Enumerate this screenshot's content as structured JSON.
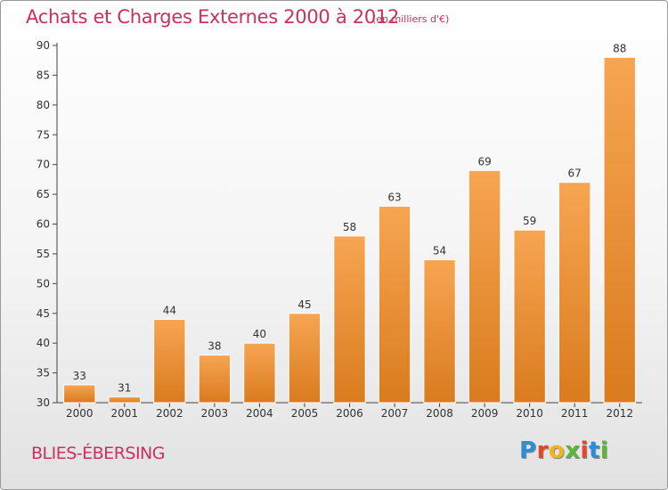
{
  "header": {
    "title": "Achats et Charges Externes 2000 à 2012",
    "subtitle": "(en milliers d'€)"
  },
  "footer": {
    "location": "BLIES-ÉBERSING",
    "logo_text": "Proxiti",
    "logo_colors": [
      "#2a8fd6",
      "#e8462b",
      "#f0b51e",
      "#5bb53a",
      "#e8462b",
      "#2a8fd6",
      "#5bb53a"
    ]
  },
  "colors": {
    "bar_top": "#f7a552",
    "bar_bottom": "#d97b1e",
    "bar_edge": "#ffffff"
  },
  "chart_data": {
    "type": "bar",
    "title": "Achats et Charges Externes 2000 à 2012",
    "subtitle": "(en milliers d'€)",
    "categories": [
      "2000",
      "2001",
      "2002",
      "2003",
      "2004",
      "2005",
      "2006",
      "2007",
      "2008",
      "2009",
      "2010",
      "2011",
      "2012"
    ],
    "values": [
      33,
      31,
      44,
      38,
      40,
      45,
      58,
      63,
      54,
      69,
      59,
      67,
      88
    ],
    "ylim": [
      30,
      90
    ],
    "yticks": [
      30,
      35,
      40,
      45,
      50,
      55,
      60,
      65,
      70,
      75,
      80,
      85,
      90
    ],
    "xlabel": "",
    "ylabel": "",
    "grid": false,
    "data_labels": true
  }
}
